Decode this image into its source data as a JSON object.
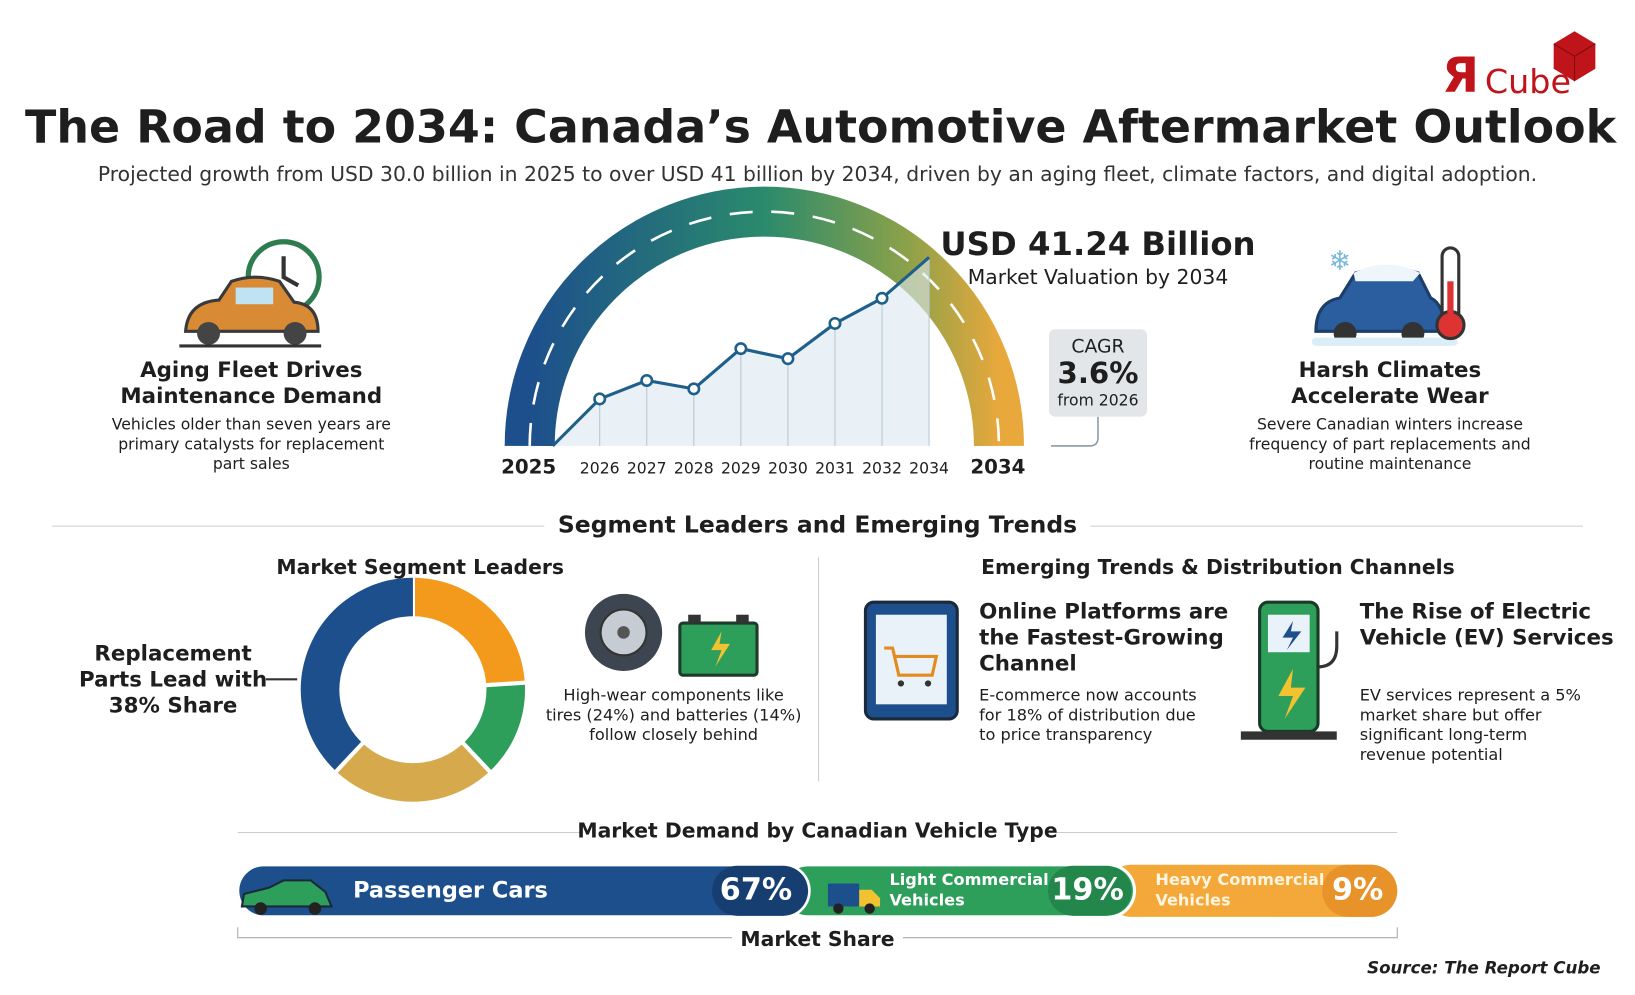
{
  "logo": {
    "mark": "Я",
    "text": "Cube"
  },
  "header": {
    "title": "The Road to 2034: Canada’s Automotive Aftermarket Outlook",
    "subtitle": "Projected growth from USD 30.0 billion in 2025 to over USD 41 billion by 2034, driven by an aging fleet, climate factors, and digital adoption."
  },
  "left_panel": {
    "title_lines": [
      "Aging Fleet Drives",
      "Maintenance Demand"
    ],
    "text_lines": [
      "Vehicles older than seven years are",
      "primary catalysts for replacement",
      "part sales"
    ]
  },
  "right_panel": {
    "title_lines": [
      "Harsh Climates",
      "Accelerate Wear"
    ],
    "text_lines": [
      "Severe Canadian winters increase",
      "frequency of part replacements and",
      "routine maintenance"
    ]
  },
  "valuation": {
    "value": "USD 41.24 Billion",
    "caption": "Market Valuation by 2034"
  },
  "cagr": {
    "label": "CAGR",
    "value": "3.6%",
    "caption": "from 2026"
  },
  "section_title": "Segment Leaders and Emerging Trends",
  "segment_panel": {
    "title": "Market Segment Leaders",
    "lead_lines": [
      "Replacement",
      "Parts Lead with",
      "38% Share"
    ],
    "note_lines": [
      "High-wear components like",
      "tires (24%) and batteries (14%)",
      "follow closely behind"
    ]
  },
  "trends_panel": {
    "title": "Emerging Trends & Distribution Channels",
    "items": [
      {
        "title_lines": [
          "Online Platforms are",
          "the Fastest-Growing",
          "Channel"
        ],
        "text_lines": [
          "E-commerce now accounts",
          "for 18% of distribution due",
          "to price transparency"
        ]
      },
      {
        "title_lines": [
          "The Rise of Electric",
          "Vehicle (EV) Services"
        ],
        "text_lines": [
          "EV services represent a 5%",
          "market share but offer",
          "significant long-term",
          "revenue potential"
        ]
      }
    ]
  },
  "vehicle_types": {
    "title": "Market Demand by Canadian Vehicle Type",
    "segments": [
      {
        "name_lines": [
          "Passenger Cars"
        ],
        "share": "67%"
      },
      {
        "name_lines": [
          "Light Commercial",
          "Vehicles"
        ],
        "share": "19%"
      },
      {
        "name_lines": [
          "Heavy Commercial",
          "Vehicles"
        ],
        "share": "9%"
      }
    ],
    "caption": "Market Share"
  },
  "source": "Source: The Report Cube",
  "chart_data": [
    {
      "type": "line",
      "range_labels": [
        "2025",
        "2034"
      ],
      "categories": [
        null,
        "2026",
        "2027",
        "2028",
        "2029",
        "2030",
        "2031",
        "2032",
        "2034"
      ],
      "series": [
        {
          "color": "#1f5f8b",
          "values": [
            30.0,
            32.8,
            33.9,
            33.4,
            35.8,
            35.2,
            37.3,
            38.8,
            41.24
          ]
        }
      ],
      "ylim": [
        30.0,
        41.24
      ]
    },
    {
      "type": "pie",
      "values": [
        24,
        14,
        24,
        38
      ],
      "colors": [
        "#f39a1c",
        "#2e9e5b",
        "#d6aa4c",
        "#1d4f8c"
      ]
    }
  ]
}
